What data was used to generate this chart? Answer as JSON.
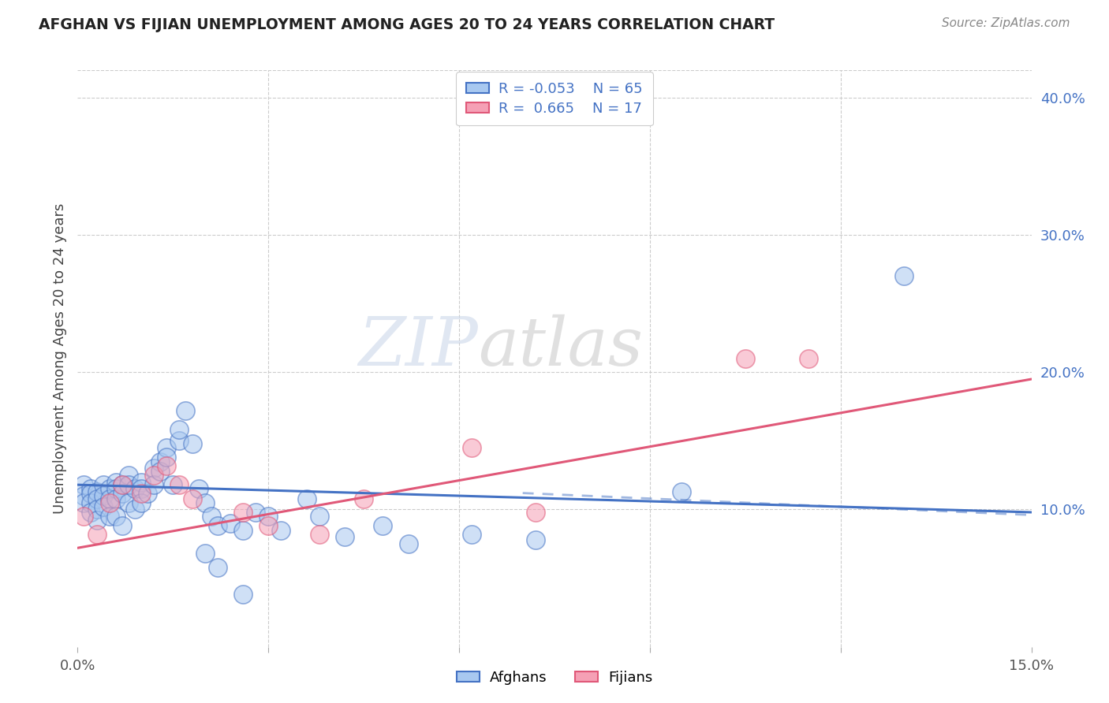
{
  "title": "AFGHAN VS FIJIAN UNEMPLOYMENT AMONG AGES 20 TO 24 YEARS CORRELATION CHART",
  "source": "Source: ZipAtlas.com",
  "ylabel": "Unemployment Among Ages 20 to 24 years",
  "xlim": [
    0.0,
    0.15
  ],
  "ylim": [
    0.0,
    0.42
  ],
  "legend_r_afghan": "-0.053",
  "legend_n_afghan": "65",
  "legend_r_fijian": "0.665",
  "legend_n_fijian": "17",
  "afghan_color": "#a8c8f0",
  "fijian_color": "#f5a0b5",
  "afghan_line_color": "#4472c4",
  "fijian_line_color": "#e05878",
  "watermark_zip": "ZIP",
  "watermark_atlas": "atlas",
  "grid_color": "#cccccc",
  "afghans_x": [
    0.001,
    0.001,
    0.001,
    0.002,
    0.002,
    0.002,
    0.002,
    0.003,
    0.003,
    0.003,
    0.003,
    0.004,
    0.004,
    0.004,
    0.005,
    0.005,
    0.005,
    0.006,
    0.006,
    0.006,
    0.006,
    0.007,
    0.007,
    0.007,
    0.008,
    0.008,
    0.008,
    0.009,
    0.009,
    0.01,
    0.01,
    0.01,
    0.011,
    0.012,
    0.012,
    0.013,
    0.013,
    0.014,
    0.014,
    0.015,
    0.016,
    0.016,
    0.017,
    0.018,
    0.019,
    0.02,
    0.021,
    0.022,
    0.024,
    0.026,
    0.028,
    0.03,
    0.032,
    0.036,
    0.038,
    0.042,
    0.048,
    0.052,
    0.062,
    0.072,
    0.02,
    0.022,
    0.026,
    0.095,
    0.13
  ],
  "afghans_y": [
    0.118,
    0.11,
    0.105,
    0.115,
    0.112,
    0.105,
    0.098,
    0.113,
    0.108,
    0.1,
    0.092,
    0.118,
    0.11,
    0.102,
    0.115,
    0.108,
    0.095,
    0.12,
    0.115,
    0.108,
    0.095,
    0.118,
    0.112,
    0.088,
    0.125,
    0.118,
    0.105,
    0.115,
    0.1,
    0.12,
    0.115,
    0.105,
    0.112,
    0.13,
    0.118,
    0.135,
    0.128,
    0.145,
    0.138,
    0.118,
    0.15,
    0.158,
    0.172,
    0.148,
    0.115,
    0.105,
    0.095,
    0.088,
    0.09,
    0.085,
    0.098,
    0.095,
    0.085,
    0.108,
    0.095,
    0.08,
    0.088,
    0.075,
    0.082,
    0.078,
    0.068,
    0.058,
    0.038,
    0.113,
    0.27
  ],
  "fijians_x": [
    0.001,
    0.003,
    0.005,
    0.007,
    0.01,
    0.012,
    0.014,
    0.016,
    0.018,
    0.026,
    0.03,
    0.038,
    0.045,
    0.062,
    0.072,
    0.105,
    0.115
  ],
  "fijians_y": [
    0.095,
    0.082,
    0.105,
    0.118,
    0.112,
    0.125,
    0.132,
    0.118,
    0.108,
    0.098,
    0.088,
    0.082,
    0.108,
    0.145,
    0.098,
    0.21,
    0.21
  ],
  "afghan_trendline_x": [
    0.0,
    0.15
  ],
  "afghan_trendline_y": [
    0.118,
    0.098
  ],
  "fijian_trendline_x": [
    0.0,
    0.15
  ],
  "fijian_trendline_y": [
    0.072,
    0.195
  ]
}
